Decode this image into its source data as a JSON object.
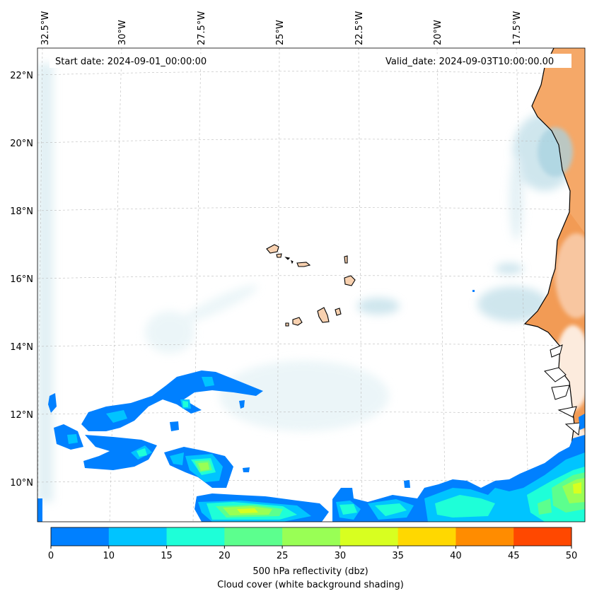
{
  "map": {
    "start_label": "Start date: 2024-09-01_00:00:00",
    "valid_label": "Valid_date: 2024-09-03T10:00:00.00",
    "lon_labels": [
      "32.5°W",
      "30°W",
      "27.5°W",
      "25°W",
      "22.5°W",
      "20°W",
      "17.5°W"
    ],
    "lat_labels": [
      "22°N",
      "20°N",
      "18°N",
      "16°N",
      "14°N",
      "12°N",
      "10°N"
    ]
  },
  "colorbar": {
    "ticks": [
      "0",
      "10",
      "15",
      "20",
      "25",
      "30",
      "35",
      "40",
      "45",
      "50"
    ],
    "colors": [
      "#0080ff",
      "#00c4ff",
      "#1effd8",
      "#5cff8e",
      "#99ff55",
      "#d8ff20",
      "#ffd800",
      "#ff8c00",
      "#ff4800"
    ],
    "label_line1": "500 hPa reflectivity (dbz)",
    "label_line2": "Cloud cover (white background shading)"
  },
  "colors": {
    "land": "#f29b55",
    "cloud_tint": "#b9dbe6",
    "coast": "#000000"
  }
}
